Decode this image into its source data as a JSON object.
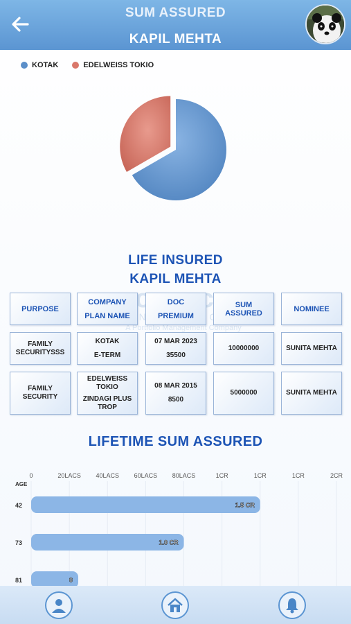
{
  "header": {
    "title": "SUM ASSURED",
    "subtitle": "KAPIL MEHTA"
  },
  "pie": {
    "legend": [
      {
        "label": "KOTAK",
        "color": "#5b8fc9"
      },
      {
        "label": "EDELWEISS TOKIO",
        "color": "#d9776a"
      }
    ],
    "values": [
      10000000,
      5000000
    ]
  },
  "life_insured": {
    "title": "LIFE INSURED",
    "name": "KAPIL MEHTA"
  },
  "table": {
    "headers": {
      "purpose": "PURPOSE",
      "company": "COMPANY",
      "plan": "PLAN NAME",
      "doc": "DOC",
      "premium": "PREMIUM",
      "sum": "SUM ASSURED",
      "nominee": "NOMINEE"
    },
    "rows": [
      {
        "purpose": "FAMILY SECURITYSSS",
        "company": "KOTAK",
        "plan": "E-TERM",
        "doc": "07 MAR 2023",
        "premium": "35500",
        "sum": "10000000",
        "nominee": "SUNITA MEHTA"
      },
      {
        "purpose": "FAMILY SECURITY",
        "company": "EDELWEISS TOKIO",
        "plan": "ZINDAGI PLUS TROP",
        "doc": "08 MAR 2015",
        "premium": "8500",
        "sum": "5000000",
        "nominee": "SUNITA MEHTA"
      }
    ]
  },
  "watermark": {
    "main": "moneycare",
    "sub": "AND SOLUTIONS",
    "tagline": "A Portfolio Management Company"
  },
  "lifetime": {
    "title": "LIFETIME SUM ASSURED",
    "chart_data": {
      "type": "bar",
      "orientation": "horizontal",
      "ylabel": "AGE",
      "x_ticks": [
        "0",
        "20LACS",
        "40LACS",
        "60LACS",
        "80LACS",
        "1CR",
        "1CR",
        "1CR",
        "2CR"
      ],
      "categories": [
        "42",
        "73",
        "81"
      ],
      "values": [
        15000000,
        10000000,
        0
      ],
      "data_labels": [
        "1.5 CR",
        "1.0 CR",
        "0"
      ],
      "xlim": [
        0,
        20000000
      ],
      "grid": true
    }
  },
  "nav": {
    "items": [
      "profile-icon",
      "home-icon",
      "bell-icon"
    ]
  }
}
